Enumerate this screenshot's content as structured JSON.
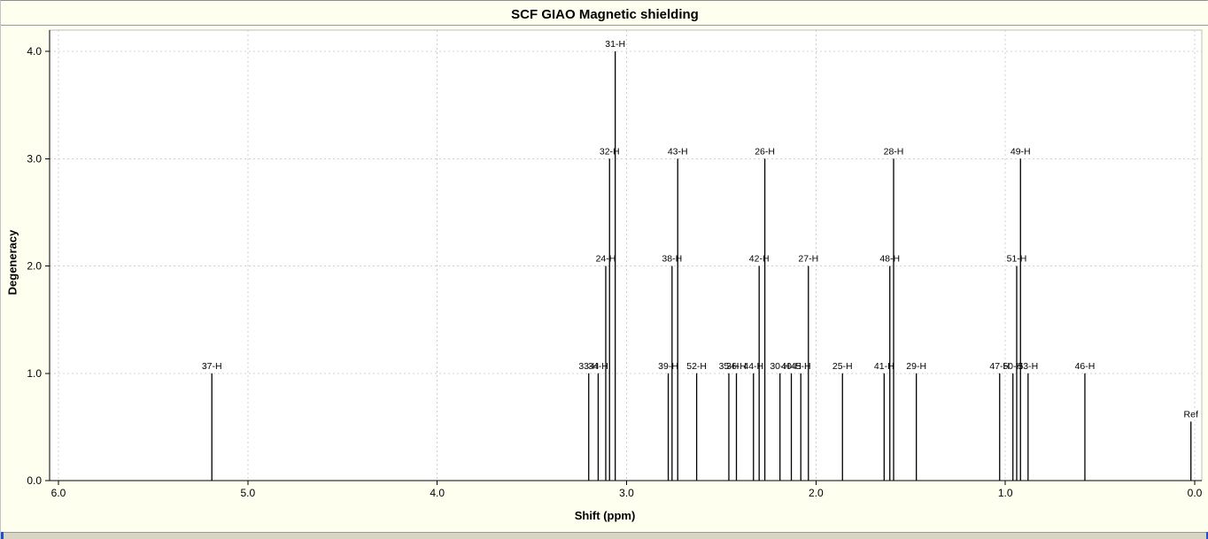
{
  "window": {
    "title": "SCF GIAO Magnetic shielding"
  },
  "chart_data": {
    "type": "bar",
    "title": "SCF GIAO Magnetic shielding",
    "xlabel": "Shift (ppm)",
    "ylabel": "Degeneracy",
    "x_tick_labels": [
      "6.0",
      "5.0",
      "4.0",
      "3.0",
      "2.0",
      "1.0",
      "0.0"
    ],
    "y_tick_labels": [
      "0.0",
      "1.0",
      "2.0",
      "3.0",
      "4.0"
    ],
    "xlim": [
      6.05,
      -0.05
    ],
    "ylim": [
      0,
      4.2
    ],
    "x_axis_reversed": true,
    "grid": true,
    "legend": "none",
    "peak_color": "#000000",
    "peaks": [
      {
        "label": "37-H",
        "shift": 5.19,
        "degeneracy": 1
      },
      {
        "label": "33-H",
        "shift": 3.2,
        "degeneracy": 1
      },
      {
        "label": "34-H",
        "shift": 3.15,
        "degeneracy": 1
      },
      {
        "label": "24-H",
        "shift": 3.11,
        "degeneracy": 2
      },
      {
        "label": "32-H",
        "shift": 3.09,
        "degeneracy": 3
      },
      {
        "label": "31-H",
        "shift": 3.06,
        "degeneracy": 4
      },
      {
        "label": "39-H",
        "shift": 2.78,
        "degeneracy": 1
      },
      {
        "label": "38-H",
        "shift": 2.76,
        "degeneracy": 2
      },
      {
        "label": "43-H",
        "shift": 2.73,
        "degeneracy": 3
      },
      {
        "label": "52-H",
        "shift": 2.63,
        "degeneracy": 1
      },
      {
        "label": "35-H",
        "shift": 2.46,
        "degeneracy": 1
      },
      {
        "label": "36-H",
        "shift": 2.42,
        "degeneracy": 1
      },
      {
        "label": "44-H",
        "shift": 2.33,
        "degeneracy": 1
      },
      {
        "label": "42-H",
        "shift": 2.3,
        "degeneracy": 2
      },
      {
        "label": "26-H",
        "shift": 2.27,
        "degeneracy": 3
      },
      {
        "label": "30-H",
        "shift": 2.19,
        "degeneracy": 1
      },
      {
        "label": "40-H",
        "shift": 2.13,
        "degeneracy": 1
      },
      {
        "label": "45-H",
        "shift": 2.08,
        "degeneracy": 1
      },
      {
        "label": "27-H",
        "shift": 2.04,
        "degeneracy": 2
      },
      {
        "label": "25-H",
        "shift": 1.86,
        "degeneracy": 1
      },
      {
        "label": "41-H",
        "shift": 1.64,
        "degeneracy": 1
      },
      {
        "label": "48-H",
        "shift": 1.61,
        "degeneracy": 2
      },
      {
        "label": "28-H",
        "shift": 1.59,
        "degeneracy": 3
      },
      {
        "label": "29-H",
        "shift": 1.47,
        "degeneracy": 1
      },
      {
        "label": "47-H",
        "shift": 1.03,
        "degeneracy": 1
      },
      {
        "label": "50-H",
        "shift": 0.96,
        "degeneracy": 1
      },
      {
        "label": "51-H",
        "shift": 0.94,
        "degeneracy": 2
      },
      {
        "label": "49-H",
        "shift": 0.92,
        "degeneracy": 3
      },
      {
        "label": "53-H",
        "shift": 0.88,
        "degeneracy": 1
      },
      {
        "label": "46-H",
        "shift": 0.58,
        "degeneracy": 1
      },
      {
        "label": "Ref",
        "shift": 0.02,
        "degeneracy": 0.55
      }
    ]
  }
}
